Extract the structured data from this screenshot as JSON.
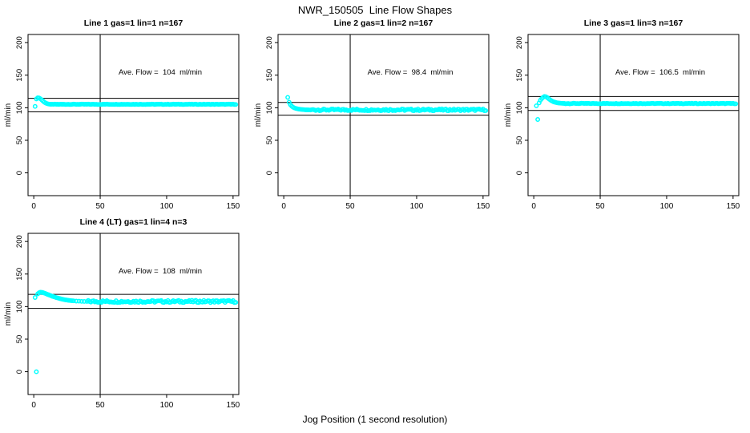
{
  "figure": {
    "title": "NWR_150505  Line Flow Shapes",
    "xlabel": "Jog Position (1 second resolution)"
  },
  "colors": {
    "point": "#00ffff",
    "axis": "#000000",
    "background": "#ffffff"
  },
  "chart_data": [
    {
      "type": "scatter",
      "title": "Line 1 gas=1 lin=1 n=167",
      "annotation": "Ave. Flow =  104  ml/min",
      "ave_flow": 104,
      "ylabel": "ml/min",
      "x_ticks": [
        0,
        50,
        100,
        150
      ],
      "y_ticks": [
        0,
        50,
        100,
        150,
        200
      ],
      "xlim": [
        -4.3,
        154.3
      ],
      "ylim": [
        -35,
        212.5
      ],
      "vline_x": 50,
      "hlines": [
        114.4,
        93.6
      ],
      "points": [
        [
          1,
          102
        ],
        [
          2,
          113.5
        ],
        [
          3,
          115.2
        ],
        [
          4,
          115
        ],
        [
          5,
          113.8
        ],
        [
          6,
          112.2
        ],
        [
          7,
          110.3
        ],
        [
          8,
          108.5
        ],
        [
          9,
          107.2
        ],
        [
          10,
          106.3
        ],
        [
          11,
          105.8
        ],
        [
          12,
          105.5
        ],
        [
          13,
          105.4
        ]
      ],
      "segments": [
        {
          "from": 14,
          "to": 152,
          "step": 1,
          "y": 105.3,
          "noise": 0.35
        }
      ]
    },
    {
      "type": "scatter",
      "title": "Line 2 gas=1 lin=2 n=167",
      "annotation": "Ave. Flow =  98.4  ml/min",
      "ave_flow": 98.4,
      "ylabel": "ml/min",
      "x_ticks": [
        0,
        50,
        100,
        150
      ],
      "y_ticks": [
        0,
        50,
        100,
        150,
        200
      ],
      "xlim": [
        -4.3,
        154.3
      ],
      "ylim": [
        -35,
        212.5
      ],
      "vline_x": 50,
      "hlines": [
        108.2,
        88.6
      ],
      "points": [
        [
          3,
          116
        ],
        [
          4,
          108.5
        ],
        [
          5,
          104.8
        ],
        [
          6,
          102.4
        ],
        [
          7,
          100.8
        ],
        [
          8,
          99.7
        ],
        [
          9,
          99
        ],
        [
          10,
          98.5
        ],
        [
          11,
          98.1
        ],
        [
          12,
          97.8
        ],
        [
          13,
          97.5
        ],
        [
          14,
          97.3
        ],
        [
          15,
          97.1
        ],
        [
          16,
          96.9
        ],
        [
          17,
          96.8
        ],
        [
          18,
          96.7
        ],
        [
          19,
          96.6
        ],
        [
          20,
          96.5
        ]
      ],
      "segments": [
        {
          "from": 21,
          "to": 152,
          "step": 1,
          "y": 96.8,
          "noise": 1.4
        }
      ]
    },
    {
      "type": "scatter",
      "title": "Line 3 gas=1 lin=3 n=167",
      "annotation": "Ave. Flow =  106.5  ml/min",
      "ave_flow": 106.5,
      "ylabel": "ml/min",
      "x_ticks": [
        0,
        50,
        100,
        150
      ],
      "y_ticks": [
        0,
        50,
        100,
        150,
        200
      ],
      "xlim": [
        -4.3,
        154.3
      ],
      "ylim": [
        -35,
        212.5
      ],
      "vline_x": 50,
      "hlines": [
        117.15,
        95.85
      ],
      "points": [
        [
          2,
          103
        ],
        [
          3,
          82
        ],
        [
          4,
          107.5
        ],
        [
          5,
          111.5
        ],
        [
          6,
          114
        ],
        [
          7,
          116
        ],
        [
          8,
          117.3
        ],
        [
          9,
          117
        ],
        [
          10,
          115.8
        ],
        [
          11,
          114.2
        ],
        [
          12,
          112.6
        ],
        [
          13,
          111.2
        ],
        [
          14,
          110
        ],
        [
          15,
          109.1
        ],
        [
          16,
          108.4
        ],
        [
          17,
          107.9
        ],
        [
          18,
          107.5
        ],
        [
          19,
          107.2
        ],
        [
          20,
          107
        ],
        [
          21,
          106.8
        ],
        [
          22,
          106.7
        ],
        [
          23,
          106.6
        ]
      ],
      "segments": [
        {
          "from": 24,
          "to": 152,
          "step": 1,
          "y": 106.5,
          "noise": 0.45
        }
      ]
    },
    {
      "type": "scatter",
      "title": "Line 4 (LT) gas=1 lin=4 n=3",
      "annotation": "Ave. Flow =  108  ml/min",
      "ave_flow": 108,
      "ylabel": "ml/min",
      "x_ticks": [
        0,
        50,
        100,
        150
      ],
      "y_ticks": [
        0,
        50,
        100,
        150,
        200
      ],
      "xlim": [
        -4.3,
        154.3
      ],
      "ylim": [
        -35,
        212.5
      ],
      "vline_x": 50,
      "hlines": [
        118.8,
        97.2
      ],
      "points": [
        [
          1,
          114
        ],
        [
          2,
          0
        ],
        [
          3,
          119.5
        ],
        [
          4,
          121.2
        ],
        [
          5,
          122
        ],
        [
          6,
          121.9
        ],
        [
          7,
          121.4
        ],
        [
          8,
          120.7
        ],
        [
          9,
          119.9
        ],
        [
          10,
          119.1
        ],
        [
          11,
          118.3
        ],
        [
          12,
          117.5
        ],
        [
          13,
          116.7
        ],
        [
          14,
          115.9
        ],
        [
          15,
          115.2
        ],
        [
          16,
          114.5
        ],
        [
          17,
          113.8
        ],
        [
          18,
          113.2
        ],
        [
          19,
          112.6
        ],
        [
          20,
          112.1
        ],
        [
          21,
          111.6
        ],
        [
          22,
          111.1
        ],
        [
          23,
          110.7
        ],
        [
          24,
          110.3
        ],
        [
          25,
          110
        ],
        [
          26,
          109.7
        ],
        [
          27,
          109.4
        ],
        [
          28,
          109.2
        ],
        [
          29,
          109
        ],
        [
          30,
          108.8
        ],
        [
          32,
          108.5
        ],
        [
          34,
          108.3
        ],
        [
          36,
          108.1
        ],
        [
          38,
          108
        ],
        [
          40,
          107.9
        ]
      ],
      "segments": [
        {
          "from": 41,
          "to": 152,
          "step": 1,
          "y": 107.9,
          "noise": 1.7
        }
      ]
    }
  ]
}
